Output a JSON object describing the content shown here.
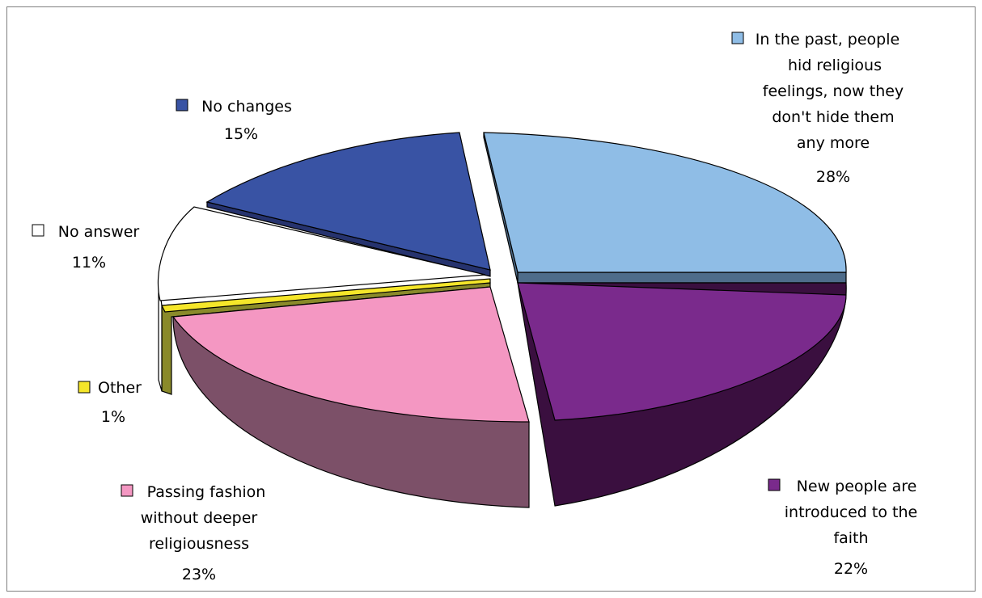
{
  "chart_data": {
    "type": "pie",
    "style": "3d-exploded",
    "legend": "labels-on-chart",
    "slices": [
      {
        "label": "In the past, people hid religious feelings, now they don't hide them any more",
        "value": 28,
        "pct_label": "28%",
        "color": "#8fbde6",
        "side_color": "#4e6c8a"
      },
      {
        "label": "New people are introduced to the faith",
        "value": 22,
        "pct_label": "22%",
        "color": "#7a2a8c",
        "side_color": "#3a0f3f"
      },
      {
        "label": "Passing fashion without deeper religiousness",
        "value": 23,
        "pct_label": "23%",
        "color": "#f497c2",
        "side_color": "#7c5068"
      },
      {
        "label": "Other",
        "value": 1,
        "pct_label": "1%",
        "color": "#f5e62a",
        "side_color": "#8a8a2a"
      },
      {
        "label": "No answer",
        "value": 11,
        "pct_label": "11%",
        "color": "#ffffff",
        "side_color": "#ffffff"
      },
      {
        "label": "No changes",
        "value": 15,
        "pct_label": "15%",
        "color": "#3953a4",
        "side_color": "#26336e"
      }
    ]
  }
}
